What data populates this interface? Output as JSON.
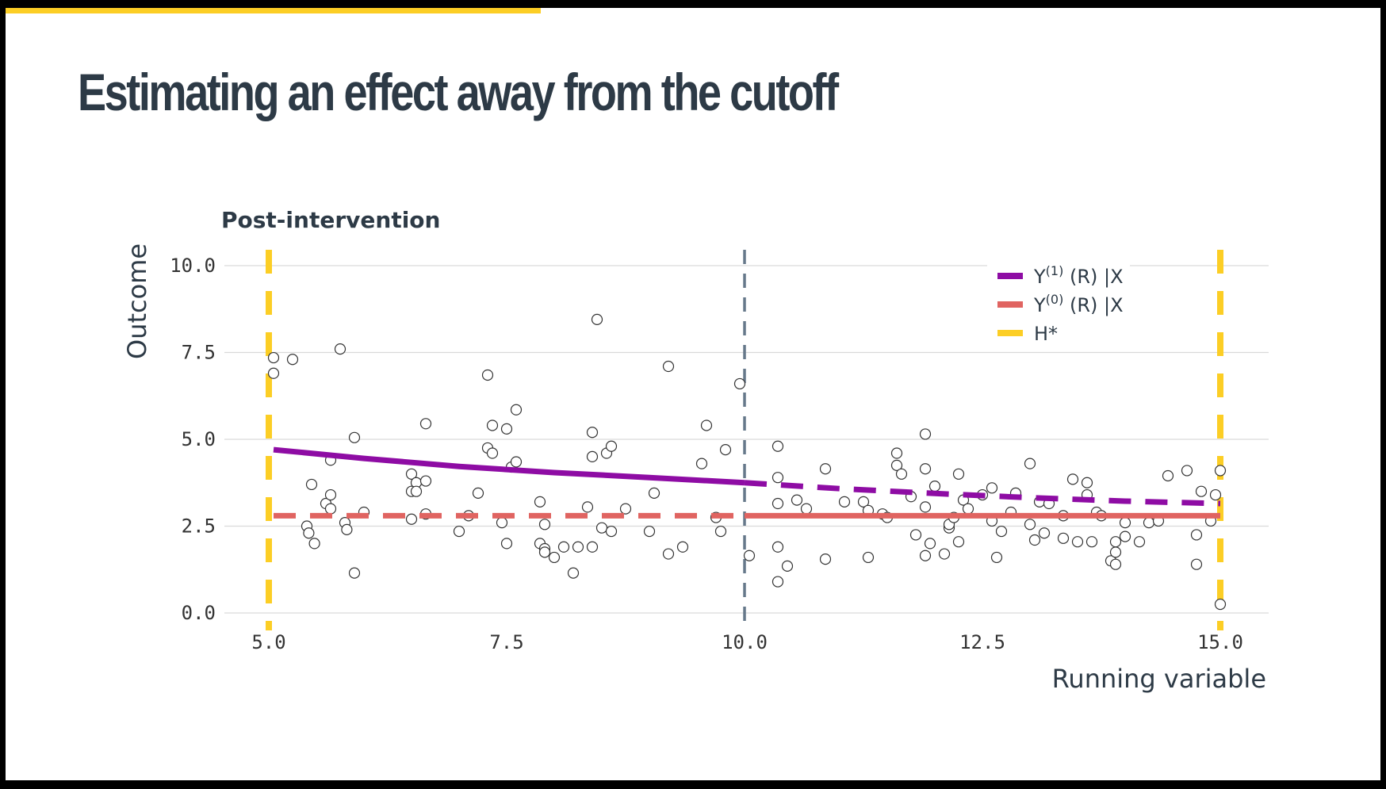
{
  "slide": {
    "title": "Estimating an effect away from the cutoff",
    "accent_color": "#fcce25"
  },
  "chart_data": {
    "type": "scatter",
    "subtitle": "Post-intervention",
    "xlabel": "Running variable",
    "ylabel": "Outcome",
    "xlim": [
      5,
      15
    ],
    "ylim": [
      0,
      10
    ],
    "x_ticks": [
      "5.0",
      "7.5",
      "10.0",
      "12.5",
      "15.0"
    ],
    "y_ticks": [
      "0.0",
      "2.5",
      "5.0",
      "7.5",
      "10.0"
    ],
    "grid": true,
    "legend_position": "top-right",
    "cutoff": 10,
    "h_star": [
      5,
      15
    ],
    "colors": {
      "y1": "#8e0ca4",
      "y0": "#e06461",
      "h_star": "#fcce25",
      "cutoff": "#66788a",
      "points": "#333333"
    },
    "legend": [
      {
        "key": "y1",
        "base": "Y",
        "sup": "(1)",
        "rest": " (R) |X"
      },
      {
        "key": "y0",
        "base": "Y",
        "sup": "(0)",
        "rest": " (R) |X"
      },
      {
        "key": "h_star",
        "base": "H*",
        "sup": "",
        "rest": ""
      }
    ],
    "series": [
      {
        "key": "y1",
        "x": [
          5.05,
          6.0,
          7.0,
          8.0,
          9.0,
          10.0,
          11.0,
          12.0,
          13.0,
          14.0,
          15.0
        ],
        "y": [
          4.7,
          4.45,
          4.22,
          4.04,
          3.9,
          3.75,
          3.58,
          3.44,
          3.32,
          3.22,
          3.15
        ]
      },
      {
        "key": "y0",
        "x": [
          5.05,
          15.0
        ],
        "y": [
          2.8,
          2.8
        ]
      }
    ],
    "points": [
      [
        5.05,
        7.35
      ],
      [
        5.05,
        6.9
      ],
      [
        5.25,
        7.3
      ],
      [
        5.75,
        7.6
      ],
      [
        5.45,
        3.7
      ],
      [
        5.6,
        3.15
      ],
      [
        5.65,
        3.0
      ],
      [
        5.65,
        3.4
      ],
      [
        5.4,
        2.5
      ],
      [
        5.42,
        2.3
      ],
      [
        5.48,
        2.0
      ],
      [
        5.8,
        2.6
      ],
      [
        5.82,
        2.4
      ],
      [
        5.9,
        1.15
      ],
      [
        5.9,
        5.05
      ],
      [
        6.0,
        2.9
      ],
      [
        5.65,
        4.4
      ],
      [
        6.5,
        4.0
      ],
      [
        6.55,
        3.75
      ],
      [
        6.5,
        3.5
      ],
      [
        6.55,
        3.5
      ],
      [
        6.5,
        2.7
      ],
      [
        6.65,
        3.8
      ],
      [
        6.65,
        2.85
      ],
      [
        6.65,
        5.45
      ],
      [
        7.0,
        2.35
      ],
      [
        7.1,
        2.8
      ],
      [
        7.2,
        3.45
      ],
      [
        7.3,
        6.85
      ],
      [
        7.3,
        4.75
      ],
      [
        7.35,
        4.6
      ],
      [
        7.35,
        5.4
      ],
      [
        7.5,
        5.3
      ],
      [
        7.55,
        4.2
      ],
      [
        7.6,
        4.35
      ],
      [
        7.6,
        5.85
      ],
      [
        7.45,
        2.6
      ],
      [
        7.5,
        2.0
      ],
      [
        7.85,
        3.2
      ],
      [
        7.85,
        2.0
      ],
      [
        7.9,
        1.85
      ],
      [
        7.9,
        1.75
      ],
      [
        7.9,
        2.55
      ],
      [
        8.0,
        1.6
      ],
      [
        8.1,
        1.9
      ],
      [
        8.2,
        1.15
      ],
      [
        8.25,
        1.9
      ],
      [
        8.35,
        3.05
      ],
      [
        8.4,
        1.9
      ],
      [
        8.4,
        5.2
      ],
      [
        8.4,
        4.5
      ],
      [
        8.45,
        8.45
      ],
      [
        8.5,
        2.45
      ],
      [
        8.55,
        4.6
      ],
      [
        8.6,
        4.8
      ],
      [
        8.6,
        2.35
      ],
      [
        8.75,
        3.0
      ],
      [
        9.0,
        2.35
      ],
      [
        9.05,
        3.45
      ],
      [
        9.2,
        7.1
      ],
      [
        9.2,
        1.7
      ],
      [
        9.35,
        1.9
      ],
      [
        9.55,
        4.3
      ],
      [
        9.6,
        5.4
      ],
      [
        9.7,
        2.75
      ],
      [
        9.75,
        2.35
      ],
      [
        9.8,
        4.7
      ],
      [
        9.95,
        6.6
      ],
      [
        10.05,
        1.65
      ],
      [
        10.35,
        4.8
      ],
      [
        10.35,
        3.9
      ],
      [
        10.35,
        3.15
      ],
      [
        10.35,
        1.9
      ],
      [
        10.35,
        0.9
      ],
      [
        10.45,
        1.35
      ],
      [
        10.55,
        3.25
      ],
      [
        10.65,
        3.0
      ],
      [
        10.85,
        4.15
      ],
      [
        10.85,
        1.55
      ],
      [
        11.05,
        3.2
      ],
      [
        11.25,
        3.2
      ],
      [
        11.3,
        2.95
      ],
      [
        11.3,
        1.6
      ],
      [
        11.45,
        2.85
      ],
      [
        11.5,
        2.75
      ],
      [
        11.6,
        4.6
      ],
      [
        11.6,
        4.25
      ],
      [
        11.65,
        4.0
      ],
      [
        11.75,
        3.35
      ],
      [
        11.8,
        2.25
      ],
      [
        11.9,
        4.15
      ],
      [
        11.9,
        5.15
      ],
      [
        11.9,
        3.05
      ],
      [
        11.9,
        1.65
      ],
      [
        11.95,
        2.0
      ],
      [
        12.0,
        3.65
      ],
      [
        12.1,
        1.7
      ],
      [
        12.15,
        2.45
      ],
      [
        12.15,
        2.55
      ],
      [
        12.2,
        2.75
      ],
      [
        12.25,
        4.0
      ],
      [
        12.25,
        2.05
      ],
      [
        12.3,
        3.25
      ],
      [
        12.35,
        3.0
      ],
      [
        12.5,
        3.4
      ],
      [
        12.6,
        3.6
      ],
      [
        12.6,
        2.65
      ],
      [
        12.65,
        1.6
      ],
      [
        12.7,
        2.35
      ],
      [
        12.8,
        2.9
      ],
      [
        12.85,
        3.45
      ],
      [
        13.0,
        4.3
      ],
      [
        13.0,
        2.55
      ],
      [
        13.05,
        2.1
      ],
      [
        13.1,
        3.2
      ],
      [
        13.15,
        2.3
      ],
      [
        13.2,
        3.15
      ],
      [
        13.35,
        2.8
      ],
      [
        13.35,
        2.15
      ],
      [
        13.45,
        3.85
      ],
      [
        13.5,
        2.05
      ],
      [
        13.6,
        3.75
      ],
      [
        13.6,
        3.4
      ],
      [
        13.65,
        2.05
      ],
      [
        13.7,
        2.9
      ],
      [
        13.75,
        2.8
      ],
      [
        13.85,
        1.5
      ],
      [
        13.9,
        1.75
      ],
      [
        13.9,
        2.05
      ],
      [
        13.9,
        1.4
      ],
      [
        14.0,
        2.6
      ],
      [
        14.0,
        2.2
      ],
      [
        14.15,
        2.05
      ],
      [
        14.25,
        2.6
      ],
      [
        14.35,
        2.65
      ],
      [
        14.45,
        3.95
      ],
      [
        14.65,
        4.1
      ],
      [
        14.75,
        1.4
      ],
      [
        14.75,
        2.25
      ],
      [
        14.8,
        3.5
      ],
      [
        14.9,
        2.65
      ],
      [
        14.95,
        3.4
      ],
      [
        15.0,
        4.1
      ],
      [
        15.0,
        0.25
      ]
    ]
  }
}
